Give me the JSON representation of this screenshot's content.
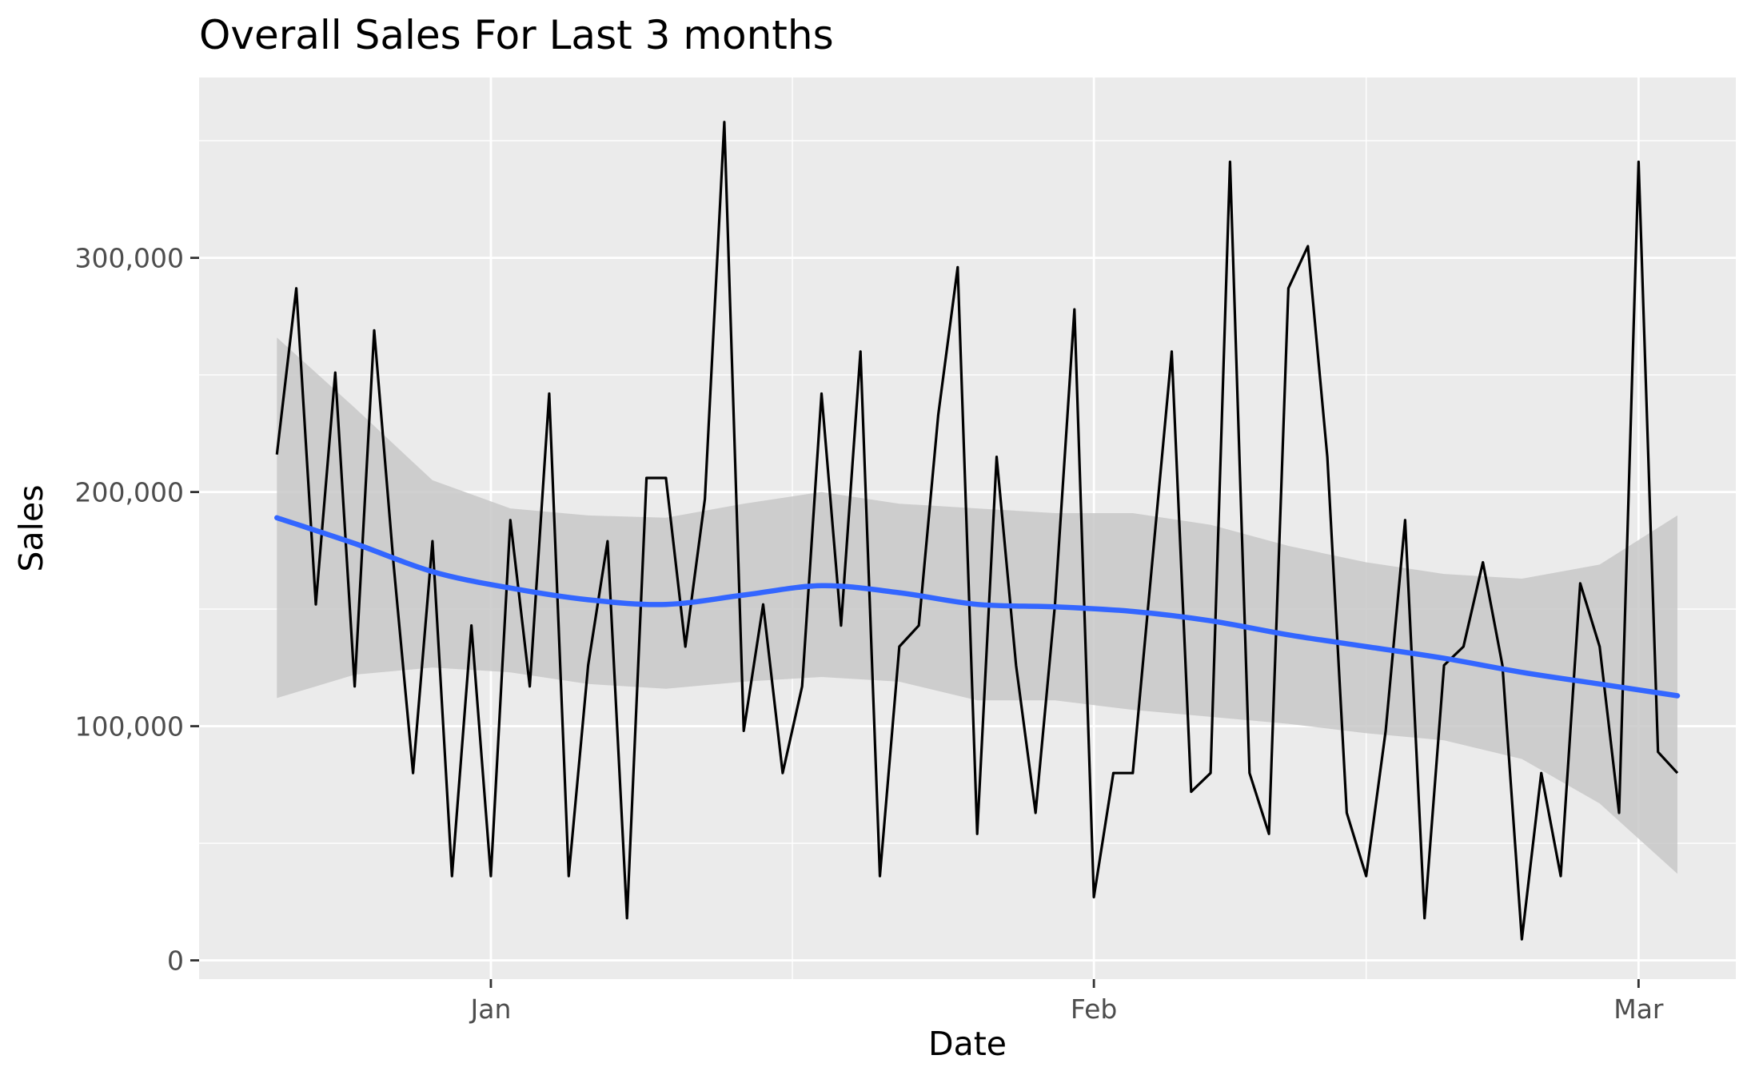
{
  "chart_data": {
    "type": "line",
    "title": "Overall Sales For Last 3 months",
    "xlabel": "Date",
    "ylabel": "Sales",
    "x_tick_labels": [
      "Jan",
      "Feb",
      "Mar"
    ],
    "x_ticks": [
      "2021-01-01",
      "2021-02-01",
      "2021-03-01"
    ],
    "y_ticks": [
      0,
      100000,
      200000,
      300000
    ],
    "y_tick_labels": [
      "0",
      "100,000",
      "200,000",
      "300,000"
    ],
    "xlim": [
      "2020-12-17",
      "2021-03-06"
    ],
    "ylim": [
      -8000,
      377000
    ],
    "grid": true,
    "legend": "none",
    "colors": {
      "panel_background": "#ebebeb",
      "grid_line": "#ffffff",
      "sales_line": "#000000",
      "smooth_line": "#3366ff",
      "confidence_band": "#c8c8c8",
      "tick_label": "#4d4d4d"
    },
    "series": [
      {
        "values": [
          [
            "2020-12-21",
            216000
          ],
          [
            "2020-12-22",
            287000
          ],
          [
            "2020-12-23",
            152000
          ],
          [
            "2020-12-24",
            251000
          ],
          [
            "2020-12-25",
            117000
          ],
          [
            "2020-12-26",
            269000
          ],
          [
            "2020-12-27",
            169000
          ],
          [
            "2020-12-28",
            80000
          ],
          [
            "2020-12-29",
            179000
          ],
          [
            "2020-12-30",
            36000
          ],
          [
            "2020-12-31",
            143000
          ],
          [
            "2021-01-01",
            36000
          ],
          [
            "2021-01-02",
            188000
          ],
          [
            "2021-01-03",
            117000
          ],
          [
            "2021-01-04",
            242000
          ],
          [
            "2021-01-05",
            36000
          ],
          [
            "2021-01-06",
            126000
          ],
          [
            "2021-01-07",
            179000
          ],
          [
            "2021-01-08",
            18000
          ],
          [
            "2021-01-09",
            206000
          ],
          [
            "2021-01-10",
            206000
          ],
          [
            "2021-01-11",
            134000
          ],
          [
            "2021-01-12",
            197000
          ],
          [
            "2021-01-13",
            358000
          ],
          [
            "2021-01-14",
            98000
          ],
          [
            "2021-01-15",
            152000
          ],
          [
            "2021-01-16",
            80000
          ],
          [
            "2021-01-17",
            117000
          ],
          [
            "2021-01-18",
            242000
          ],
          [
            "2021-01-19",
            143000
          ],
          [
            "2021-01-20",
            260000
          ],
          [
            "2021-01-21",
            36000
          ],
          [
            "2021-01-22",
            134000
          ],
          [
            "2021-01-23",
            143000
          ],
          [
            "2021-01-24",
            233000
          ],
          [
            "2021-01-25",
            296000
          ],
          [
            "2021-01-26",
            54000
          ],
          [
            "2021-01-27",
            215000
          ],
          [
            "2021-01-28",
            126000
          ],
          [
            "2021-01-29",
            63000
          ],
          [
            "2021-01-30",
            152000
          ],
          [
            "2021-01-31",
            278000
          ],
          [
            "2021-02-01",
            27000
          ],
          [
            "2021-02-02",
            80000
          ],
          [
            "2021-02-03",
            80000
          ],
          [
            "2021-02-04",
            170000
          ],
          [
            "2021-02-05",
            260000
          ],
          [
            "2021-02-06",
            72000
          ],
          [
            "2021-02-07",
            80000
          ],
          [
            "2021-02-08",
            341000
          ],
          [
            "2021-02-09",
            80000
          ],
          [
            "2021-02-10",
            54000
          ],
          [
            "2021-02-11",
            287000
          ],
          [
            "2021-02-12",
            305000
          ],
          [
            "2021-02-13",
            215000
          ],
          [
            "2021-02-14",
            63000
          ],
          [
            "2021-02-15",
            36000
          ],
          [
            "2021-02-16",
            98000
          ],
          [
            "2021-02-17",
            188000
          ],
          [
            "2021-02-18",
            18000
          ],
          [
            "2021-02-19",
            126000
          ],
          [
            "2021-02-20",
            134000
          ],
          [
            "2021-02-21",
            170000
          ],
          [
            "2021-02-22",
            126000
          ],
          [
            "2021-02-23",
            9000
          ],
          [
            "2021-02-24",
            80000
          ],
          [
            "2021-02-25",
            36000
          ],
          [
            "2021-02-26",
            161000
          ],
          [
            "2021-02-27",
            134000
          ],
          [
            "2021-02-28",
            63000
          ],
          [
            "2021-03-01",
            341000
          ],
          [
            "2021-03-02",
            89000
          ],
          [
            "2021-03-03",
            80000
          ]
        ]
      }
    ],
    "smooth": {
      "fit": [
        [
          "2020-12-21",
          189000
        ],
        [
          "2020-12-25",
          178000
        ],
        [
          "2020-12-29",
          166000
        ],
        [
          "2021-01-02",
          159000
        ],
        [
          "2021-01-06",
          154000
        ],
        [
          "2021-01-10",
          152000
        ],
        [
          "2021-01-14",
          156000
        ],
        [
          "2021-01-18",
          160000
        ],
        [
          "2021-01-22",
          157000
        ],
        [
          "2021-01-26",
          152000
        ],
        [
          "2021-01-30",
          151000
        ],
        [
          "2021-02-03",
          149000
        ],
        [
          "2021-02-07",
          145000
        ],
        [
          "2021-02-11",
          139000
        ],
        [
          "2021-02-15",
          134000
        ],
        [
          "2021-02-19",
          129000
        ],
        [
          "2021-02-23",
          123000
        ],
        [
          "2021-02-27",
          118000
        ],
        [
          "2021-03-03",
          113000
        ]
      ],
      "lower": [
        [
          "2020-12-21",
          112000
        ],
        [
          "2020-12-25",
          122000
        ],
        [
          "2020-12-29",
          125000
        ],
        [
          "2021-01-02",
          123000
        ],
        [
          "2021-01-06",
          118000
        ],
        [
          "2021-01-10",
          116000
        ],
        [
          "2021-01-14",
          119000
        ],
        [
          "2021-01-18",
          121000
        ],
        [
          "2021-01-22",
          119000
        ],
        [
          "2021-01-26",
          111000
        ],
        [
          "2021-01-30",
          111000
        ],
        [
          "2021-02-03",
          107000
        ],
        [
          "2021-02-07",
          104000
        ],
        [
          "2021-02-11",
          101000
        ],
        [
          "2021-02-15",
          97000
        ],
        [
          "2021-02-19",
          94000
        ],
        [
          "2021-02-23",
          86000
        ],
        [
          "2021-02-27",
          67000
        ],
        [
          "2021-03-03",
          37000
        ]
      ],
      "upper": [
        [
          "2020-12-21",
          266000
        ],
        [
          "2020-12-25",
          236000
        ],
        [
          "2020-12-29",
          205000
        ],
        [
          "2021-01-02",
          193000
        ],
        [
          "2021-01-06",
          190000
        ],
        [
          "2021-01-10",
          189000
        ],
        [
          "2021-01-14",
          195000
        ],
        [
          "2021-01-18",
          200000
        ],
        [
          "2021-01-22",
          195000
        ],
        [
          "2021-01-26",
          193000
        ],
        [
          "2021-01-30",
          191000
        ],
        [
          "2021-02-03",
          191000
        ],
        [
          "2021-02-07",
          186000
        ],
        [
          "2021-02-11",
          177000
        ],
        [
          "2021-02-15",
          170000
        ],
        [
          "2021-02-19",
          165000
        ],
        [
          "2021-02-23",
          163000
        ],
        [
          "2021-02-27",
          169000
        ],
        [
          "2021-03-03",
          190000
        ]
      ]
    }
  }
}
